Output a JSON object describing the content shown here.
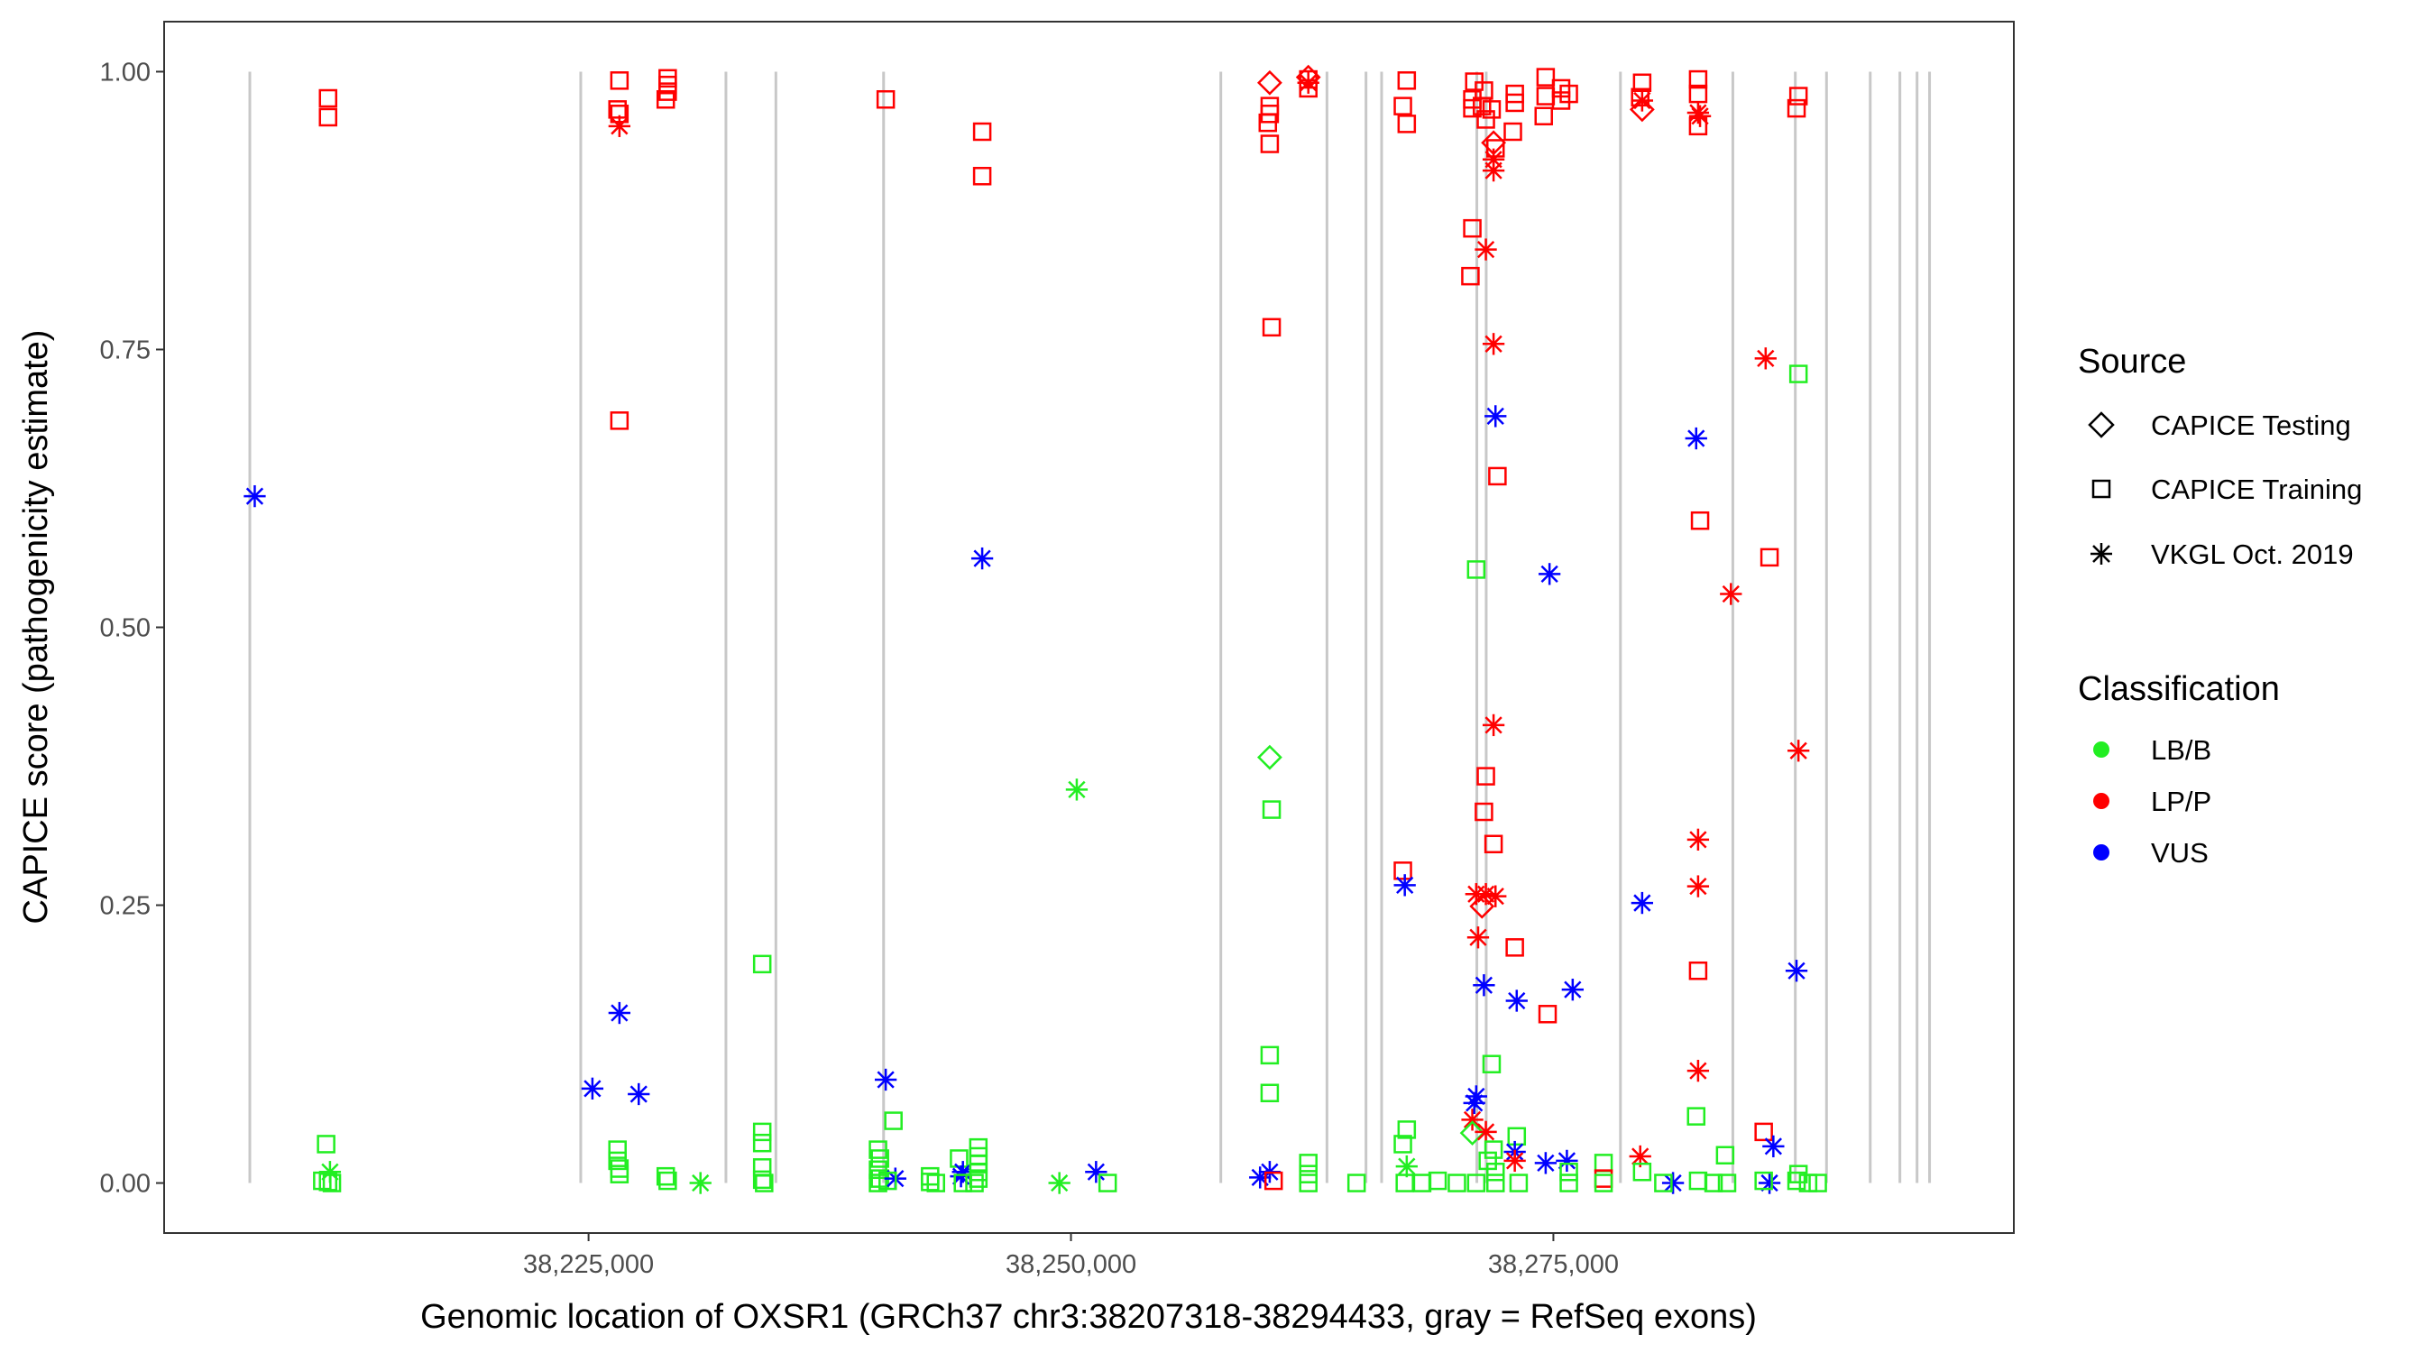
{
  "chart_data": {
    "type": "scatter",
    "title": "",
    "xlabel": "Genomic location of OXSR1 (GRCh37 chr3:38207318-38294433, gray = RefSeq exons)",
    "ylabel": "CAPICE score (pathogenicity estimate)",
    "xlim": [
      38203005,
      38298862
    ],
    "ylim": [
      -0.045,
      1.045
    ],
    "x_ticks": [
      {
        "value": 38225000,
        "label": "38,225,000"
      },
      {
        "value": 38250000,
        "label": "38,250,000"
      },
      {
        "value": 38275000,
        "label": "38,275,000"
      }
    ],
    "y_ticks": [
      {
        "value": 0.0,
        "label": "0.00"
      },
      {
        "value": 0.25,
        "label": "0.25"
      },
      {
        "value": 0.5,
        "label": "0.50"
      },
      {
        "value": 0.75,
        "label": "0.75"
      },
      {
        "value": 1.0,
        "label": "1.00"
      }
    ],
    "grid": false,
    "exons": [
      38207445,
      38224595,
      38232119,
      38234708,
      38240290,
      38257765,
      38263266,
      38265289,
      38266098,
      38271033,
      38271518,
      38278476,
      38284300,
      38287537,
      38289155,
      38291420,
      38292957,
      38293847,
      38294494
    ],
    "exon_y_range": [
      0,
      1
    ],
    "legend": {
      "placement": "right",
      "source": {
        "title": "Source",
        "items": [
          {
            "key": "testing",
            "label": "CAPICE Testing",
            "shape": "diamond"
          },
          {
            "key": "training",
            "label": "CAPICE Training",
            "shape": "square"
          },
          {
            "key": "vkgl",
            "label": "VKGL Oct. 2019",
            "shape": "asterisk"
          }
        ]
      },
      "classification": {
        "title": "Classification",
        "items": [
          {
            "key": "LB/B",
            "label": "LB/B",
            "color": "#00ee00"
          },
          {
            "key": "LP/P",
            "label": "LP/P",
            "color": "#ff0000"
          },
          {
            "key": "VUS",
            "label": "VUS",
            "color": "#0000ff"
          }
        ]
      }
    },
    "colors": {
      "LB/B": "#22ee22",
      "LP/P": "#ff0000",
      "VUS": "#0000ff",
      "exon": "#c8c8c8"
    },
    "point_fields": [
      "position",
      "score",
      "source",
      "classification"
    ],
    "points": [
      [
        38207700,
        0.618,
        "vkgl",
        "VUS"
      ],
      [
        38211500,
        0.976,
        "training",
        "LP/P"
      ],
      [
        38211500,
        0.959,
        "training",
        "LP/P"
      ],
      [
        38211400,
        0.035,
        "training",
        "LB/B"
      ],
      [
        38211600,
        0.01,
        "vkgl",
        "LB/B"
      ],
      [
        38211200,
        0.002,
        "training",
        "LB/B"
      ],
      [
        38211500,
        0.001,
        "training",
        "LB/B"
      ],
      [
        38211700,
        0.0,
        "training",
        "LB/B"
      ],
      [
        38225200,
        0.085,
        "vkgl",
        "VUS"
      ],
      [
        38226600,
        0.992,
        "training",
        "LP/P"
      ],
      [
        38226500,
        0.966,
        "training",
        "LP/P"
      ],
      [
        38226600,
        0.962,
        "training",
        "LP/P"
      ],
      [
        38226600,
        0.951,
        "vkgl",
        "LP/P"
      ],
      [
        38226600,
        0.686,
        "training",
        "LP/P"
      ],
      [
        38226600,
        0.153,
        "vkgl",
        "VUS"
      ],
      [
        38226500,
        0.03,
        "training",
        "LB/B"
      ],
      [
        38226500,
        0.02,
        "training",
        "LB/B"
      ],
      [
        38226600,
        0.013,
        "training",
        "LB/B"
      ],
      [
        38226600,
        0.008,
        "training",
        "LB/B"
      ],
      [
        38227600,
        0.08,
        "vkgl",
        "VUS"
      ],
      [
        38229100,
        0.994,
        "training",
        "LP/P"
      ],
      [
        38229100,
        0.988,
        "training",
        "LP/P"
      ],
      [
        38229100,
        0.982,
        "training",
        "LP/P"
      ],
      [
        38229000,
        0.975,
        "training",
        "LP/P"
      ],
      [
        38229000,
        0.006,
        "training",
        "LB/B"
      ],
      [
        38229100,
        0.002,
        "training",
        "LB/B"
      ],
      [
        38230800,
        0.0,
        "vkgl",
        "LB/B"
      ],
      [
        38234000,
        0.197,
        "training",
        "LB/B"
      ],
      [
        38234000,
        0.046,
        "training",
        "LB/B"
      ],
      [
        38234000,
        0.036,
        "training",
        "LB/B"
      ],
      [
        38234000,
        0.014,
        "training",
        "LB/B"
      ],
      [
        38234000,
        0.003,
        "training",
        "LB/B"
      ],
      [
        38234100,
        0.0,
        "training",
        "LB/B"
      ],
      [
        38240400,
        0.975,
        "training",
        "LP/P"
      ],
      [
        38240400,
        0.093,
        "vkgl",
        "VUS"
      ],
      [
        38240800,
        0.056,
        "training",
        "LB/B"
      ],
      [
        38240000,
        0.03,
        "training",
        "LB/B"
      ],
      [
        38240100,
        0.022,
        "training",
        "LB/B"
      ],
      [
        38240000,
        0.012,
        "training",
        "LB/B"
      ],
      [
        38240100,
        0.004,
        "training",
        "LB/B"
      ],
      [
        38240000,
        0.0,
        "training",
        "LB/B"
      ],
      [
        38240900,
        0.004,
        "vkgl",
        "VUS"
      ],
      [
        38240500,
        0.002,
        "training",
        "LB/B"
      ],
      [
        38242700,
        0.006,
        "training",
        "LB/B"
      ],
      [
        38242700,
        0.001,
        "training",
        "LB/B"
      ],
      [
        38243000,
        0.0,
        "training",
        "LB/B"
      ],
      [
        38244200,
        0.022,
        "training",
        "LB/B"
      ],
      [
        38244400,
        0.01,
        "vkgl",
        "VUS"
      ],
      [
        38244300,
        0.006,
        "vkgl",
        "VUS"
      ],
      [
        38244400,
        0.0,
        "training",
        "LB/B"
      ],
      [
        38245200,
        0.032,
        "training",
        "LB/B"
      ],
      [
        38245200,
        0.024,
        "training",
        "LB/B"
      ],
      [
        38245200,
        0.017,
        "training",
        "LB/B"
      ],
      [
        38245200,
        0.01,
        "training",
        "LB/B"
      ],
      [
        38245200,
        0.004,
        "training",
        "LB/B"
      ],
      [
        38245000,
        0.0,
        "training",
        "LB/B"
      ],
      [
        38245400,
        0.946,
        "training",
        "LP/P"
      ],
      [
        38245400,
        0.906,
        "training",
        "LP/P"
      ],
      [
        38245400,
        0.562,
        "vkgl",
        "VUS"
      ],
      [
        38249400,
        0.0,
        "vkgl",
        "LB/B"
      ],
      [
        38250300,
        0.354,
        "vkgl",
        "LB/B"
      ],
      [
        38251300,
        0.01,
        "vkgl",
        "VUS"
      ],
      [
        38251900,
        0.0,
        "training",
        "LB/B"
      ],
      [
        38259800,
        0.005,
        "vkgl",
        "VUS"
      ],
      [
        38260300,
        0.99,
        "testing",
        "LP/P"
      ],
      [
        38260300,
        0.969,
        "training",
        "LP/P"
      ],
      [
        38260300,
        0.962,
        "training",
        "LP/P"
      ],
      [
        38260200,
        0.954,
        "training",
        "LP/P"
      ],
      [
        38260300,
        0.935,
        "training",
        "LP/P"
      ],
      [
        38260400,
        0.77,
        "training",
        "LP/P"
      ],
      [
        38260300,
        0.383,
        "testing",
        "LB/B"
      ],
      [
        38260400,
        0.336,
        "training",
        "LB/B"
      ],
      [
        38260300,
        0.115,
        "training",
        "LB/B"
      ],
      [
        38260300,
        0.081,
        "training",
        "LB/B"
      ],
      [
        38260300,
        0.01,
        "vkgl",
        "VUS"
      ],
      [
        38260500,
        0.002,
        "training",
        "LP/P"
      ],
      [
        38262300,
        0.995,
        "testing",
        "LP/P"
      ],
      [
        38262300,
        0.993,
        "training",
        "LP/P"
      ],
      [
        38262300,
        0.99,
        "vkgl",
        "LP/P"
      ],
      [
        38262300,
        0.985,
        "training",
        "LP/P"
      ],
      [
        38262300,
        0.018,
        "training",
        "LB/B"
      ],
      [
        38262300,
        0.008,
        "training",
        "LB/B"
      ],
      [
        38262300,
        0.0,
        "training",
        "LB/B"
      ],
      [
        38264800,
        0.0,
        "training",
        "LB/B"
      ],
      [
        38267400,
        0.992,
        "training",
        "LP/P"
      ],
      [
        38267200,
        0.969,
        "training",
        "LP/P"
      ],
      [
        38267400,
        0.953,
        "training",
        "LP/P"
      ],
      [
        38267200,
        0.281,
        "training",
        "LP/P"
      ],
      [
        38267300,
        0.268,
        "vkgl",
        "VUS"
      ],
      [
        38267400,
        0.048,
        "training",
        "LB/B"
      ],
      [
        38267200,
        0.035,
        "training",
        "LB/B"
      ],
      [
        38267400,
        0.015,
        "vkgl",
        "LB/B"
      ],
      [
        38267300,
        0.0,
        "training",
        "LB/B"
      ],
      [
        38268200,
        0.0,
        "training",
        "LB/B"
      ],
      [
        38269000,
        0.002,
        "training",
        "LB/B"
      ],
      [
        38270000,
        0.0,
        "training",
        "LB/B"
      ],
      [
        38270900,
        0.991,
        "training",
        "LP/P"
      ],
      [
        38270800,
        0.975,
        "training",
        "LP/P"
      ],
      [
        38270800,
        0.967,
        "training",
        "LP/P"
      ],
      [
        38270800,
        0.859,
        "training",
        "LP/P"
      ],
      [
        38270700,
        0.816,
        "training",
        "LP/P"
      ],
      [
        38271000,
        0.552,
        "training",
        "LB/B"
      ],
      [
        38270800,
        0.057,
        "vkgl",
        "LP/P"
      ],
      [
        38270900,
        0.072,
        "vkgl",
        "VUS"
      ],
      [
        38271000,
        0.078,
        "vkgl",
        "VUS"
      ],
      [
        38270800,
        0.045,
        "testing",
        "LB/B"
      ],
      [
        38271000,
        0.26,
        "vkgl",
        "LP/P"
      ],
      [
        38271100,
        0.221,
        "vkgl",
        "LP/P"
      ],
      [
        38271000,
        0.0,
        "training",
        "LB/B"
      ],
      [
        38271400,
        0.983,
        "training",
        "LP/P"
      ],
      [
        38271300,
        0.969,
        "training",
        "LP/P"
      ],
      [
        38271500,
        0.957,
        "training",
        "LP/P"
      ],
      [
        38271500,
        0.84,
        "vkgl",
        "LP/P"
      ],
      [
        38271500,
        0.366,
        "training",
        "LP/P"
      ],
      [
        38271400,
        0.334,
        "training",
        "LP/P"
      ],
      [
        38271500,
        0.26,
        "vkgl",
        "LP/P"
      ],
      [
        38271300,
        0.249,
        "testing",
        "LP/P"
      ],
      [
        38271400,
        0.178,
        "vkgl",
        "VUS"
      ],
      [
        38271500,
        0.046,
        "vkgl",
        "LP/P"
      ],
      [
        38271600,
        0.02,
        "training",
        "LB/B"
      ],
      [
        38271800,
        0.107,
        "training",
        "LB/B"
      ],
      [
        38271800,
        0.966,
        "training",
        "LP/P"
      ],
      [
        38271900,
        0.936,
        "testing",
        "LP/P"
      ],
      [
        38272000,
        0.931,
        "training",
        "LP/P"
      ],
      [
        38271900,
        0.921,
        "vkgl",
        "LP/P"
      ],
      [
        38271900,
        0.911,
        "vkgl",
        "LP/P"
      ],
      [
        38271900,
        0.755,
        "vkgl",
        "LP/P"
      ],
      [
        38272000,
        0.69,
        "vkgl",
        "VUS"
      ],
      [
        38272100,
        0.636,
        "training",
        "LP/P"
      ],
      [
        38271900,
        0.412,
        "vkgl",
        "LP/P"
      ],
      [
        38271900,
        0.305,
        "training",
        "LP/P"
      ],
      [
        38272000,
        0.258,
        "vkgl",
        "LP/P"
      ],
      [
        38271900,
        0.03,
        "training",
        "LB/B"
      ],
      [
        38272000,
        0.01,
        "training",
        "LB/B"
      ],
      [
        38272000,
        0.0,
        "training",
        "LB/B"
      ],
      [
        38273000,
        0.98,
        "training",
        "LP/P"
      ],
      [
        38273000,
        0.972,
        "training",
        "LP/P"
      ],
      [
        38272900,
        0.946,
        "training",
        "LP/P"
      ],
      [
        38273000,
        0.212,
        "training",
        "LP/P"
      ],
      [
        38273100,
        0.164,
        "vkgl",
        "VUS"
      ],
      [
        38273100,
        0.042,
        "training",
        "LB/B"
      ],
      [
        38273000,
        0.028,
        "vkgl",
        "VUS"
      ],
      [
        38273000,
        0.02,
        "vkgl",
        "LP/P"
      ],
      [
        38273200,
        0.0,
        "training",
        "LB/B"
      ],
      [
        38274600,
        0.995,
        "training",
        "LP/P"
      ],
      [
        38274600,
        0.978,
        "training",
        "LP/P"
      ],
      [
        38274500,
        0.96,
        "training",
        "LP/P"
      ],
      [
        38274800,
        0.548,
        "vkgl",
        "VUS"
      ],
      [
        38274700,
        0.152,
        "training",
        "LP/P"
      ],
      [
        38274600,
        0.018,
        "vkgl",
        "VUS"
      ],
      [
        38275400,
        0.985,
        "training",
        "LP/P"
      ],
      [
        38275400,
        0.974,
        "training",
        "LP/P"
      ],
      [
        38275800,
        0.98,
        "training",
        "LP/P"
      ],
      [
        38276000,
        0.174,
        "vkgl",
        "VUS"
      ],
      [
        38275700,
        0.02,
        "vkgl",
        "VUS"
      ],
      [
        38275800,
        0.01,
        "training",
        "LB/B"
      ],
      [
        38275800,
        0.0,
        "training",
        "LB/B"
      ],
      [
        38277600,
        0.018,
        "training",
        "LB/B"
      ],
      [
        38277600,
        0.004,
        "training",
        "LP/P"
      ],
      [
        38277600,
        0.0,
        "training",
        "LB/B"
      ],
      [
        38279600,
        0.99,
        "training",
        "LP/P"
      ],
      [
        38279500,
        0.977,
        "training",
        "LP/P"
      ],
      [
        38279600,
        0.974,
        "vkgl",
        "LP/P"
      ],
      [
        38279600,
        0.966,
        "testing",
        "LP/P"
      ],
      [
        38279600,
        0.252,
        "vkgl",
        "VUS"
      ],
      [
        38279500,
        0.024,
        "vkgl",
        "LP/P"
      ],
      [
        38279600,
        0.01,
        "training",
        "LB/B"
      ],
      [
        38281200,
        0.0,
        "vkgl",
        "VUS"
      ],
      [
        38280700,
        0.0,
        "training",
        "LB/B"
      ],
      [
        38282500,
        0.993,
        "training",
        "LP/P"
      ],
      [
        38282500,
        0.98,
        "training",
        "LP/P"
      ],
      [
        38282500,
        0.963,
        "vkgl",
        "LP/P"
      ],
      [
        38282600,
        0.96,
        "vkgl",
        "LP/P"
      ],
      [
        38282500,
        0.951,
        "training",
        "LP/P"
      ],
      [
        38282400,
        0.67,
        "vkgl",
        "VUS"
      ],
      [
        38282600,
        0.596,
        "training",
        "LP/P"
      ],
      [
        38282500,
        0.309,
        "vkgl",
        "LP/P"
      ],
      [
        38282500,
        0.267,
        "vkgl",
        "LP/P"
      ],
      [
        38282500,
        0.191,
        "training",
        "LP/P"
      ],
      [
        38282500,
        0.101,
        "vkgl",
        "LP/P"
      ],
      [
        38282400,
        0.06,
        "training",
        "LB/B"
      ],
      [
        38282500,
        0.002,
        "training",
        "LB/B"
      ],
      [
        38283300,
        0.0,
        "training",
        "LB/B"
      ],
      [
        38283900,
        0.025,
        "training",
        "LB/B"
      ],
      [
        38284000,
        0.0,
        "training",
        "LB/B"
      ],
      [
        38284200,
        0.53,
        "vkgl",
        "LP/P"
      ],
      [
        38286000,
        0.742,
        "vkgl",
        "LP/P"
      ],
      [
        38286200,
        0.563,
        "training",
        "LP/P"
      ],
      [
        38285900,
        0.046,
        "training",
        "LP/P"
      ],
      [
        38286400,
        0.033,
        "vkgl",
        "VUS"
      ],
      [
        38286200,
        0.0,
        "vkgl",
        "VUS"
      ],
      [
        38285900,
        0.002,
        "training",
        "LB/B"
      ],
      [
        38287700,
        0.978,
        "training",
        "LP/P"
      ],
      [
        38287600,
        0.967,
        "training",
        "LP/P"
      ],
      [
        38287700,
        0.728,
        "training",
        "LB/B"
      ],
      [
        38287700,
        0.389,
        "vkgl",
        "LP/P"
      ],
      [
        38287600,
        0.191,
        "vkgl",
        "VUS"
      ],
      [
        38287700,
        0.008,
        "training",
        "LB/B"
      ],
      [
        38287600,
        0.002,
        "training",
        "LB/B"
      ],
      [
        38288200,
        0.0,
        "training",
        "LB/B"
      ],
      [
        38288700,
        0.0,
        "training",
        "LB/B"
      ]
    ]
  }
}
